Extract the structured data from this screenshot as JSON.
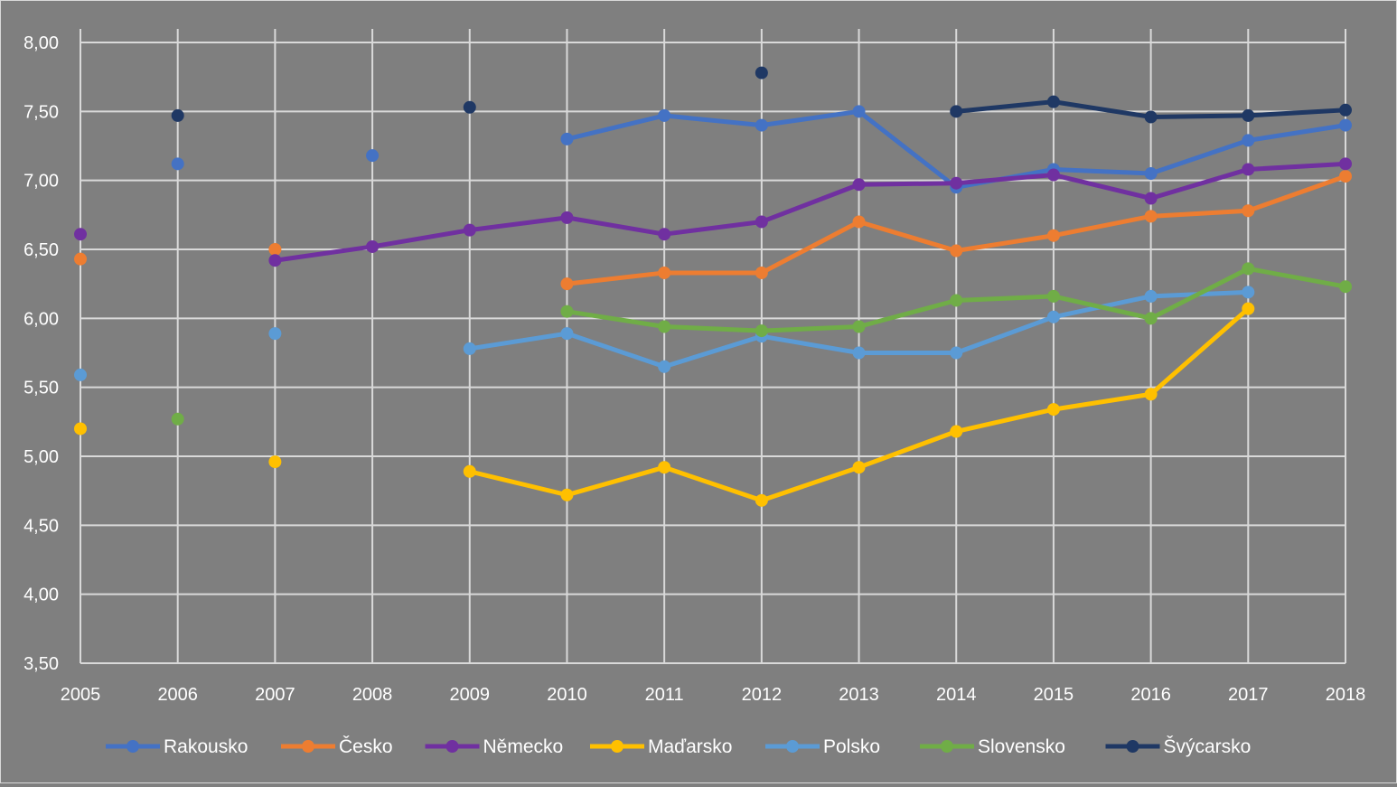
{
  "chart_data": {
    "type": "line",
    "title": "",
    "xlabel": "",
    "ylabel": "",
    "x": [
      "2005",
      "2006",
      "2007",
      "2008",
      "2009",
      "2010",
      "2011",
      "2012",
      "2013",
      "2014",
      "2015",
      "2016",
      "2017",
      "2018"
    ],
    "ylim": [
      3.5,
      8.0
    ],
    "yticks": [
      "3,50",
      "4,00",
      "4,50",
      "5,00",
      "5,50",
      "6,00",
      "6,50",
      "7,00",
      "7,50",
      "8,00"
    ],
    "ytick_values": [
      3.5,
      4.0,
      4.5,
      5.0,
      5.5,
      6.0,
      6.5,
      7.0,
      7.5,
      8.0
    ],
    "grid": true,
    "legend_position": "bottom",
    "series": [
      {
        "name": "Rakousko",
        "color": "#4472c4",
        "values": [
          null,
          7.12,
          null,
          7.18,
          null,
          7.3,
          7.47,
          7.4,
          7.5,
          6.95,
          7.08,
          7.05,
          7.29,
          7.4
        ]
      },
      {
        "name": "Česko",
        "color": "#ed7d31",
        "values": [
          6.43,
          null,
          6.5,
          null,
          null,
          6.25,
          6.33,
          6.33,
          6.7,
          6.49,
          6.6,
          6.74,
          6.78,
          7.03
        ]
      },
      {
        "name": "Německo",
        "color": "#7030a0",
        "values": [
          6.61,
          null,
          6.42,
          6.52,
          6.64,
          6.73,
          6.61,
          6.7,
          6.97,
          6.98,
          7.04,
          6.87,
          7.08,
          7.12
        ]
      },
      {
        "name": "Maďarsko",
        "color": "#ffc000",
        "values": [
          5.2,
          null,
          4.96,
          null,
          4.89,
          4.72,
          4.92,
          4.68,
          4.92,
          5.18,
          5.34,
          5.45,
          6.07,
          null
        ]
      },
      {
        "name": "Polsko",
        "color": "#5b9bd5",
        "values": [
          5.59,
          null,
          5.89,
          null,
          5.78,
          5.89,
          5.65,
          5.87,
          5.75,
          5.75,
          6.01,
          6.16,
          6.19,
          null
        ]
      },
      {
        "name": "Slovensko",
        "color": "#70ad47",
        "values": [
          null,
          5.27,
          null,
          null,
          null,
          6.05,
          5.94,
          5.91,
          5.94,
          6.13,
          6.16,
          6.0,
          6.36,
          6.23
        ]
      },
      {
        "name": "Švýcarsko",
        "color": "#1f3864",
        "values": [
          null,
          7.47,
          null,
          null,
          7.53,
          null,
          null,
          7.78,
          null,
          7.5,
          7.57,
          7.46,
          7.47,
          7.51
        ]
      }
    ]
  }
}
